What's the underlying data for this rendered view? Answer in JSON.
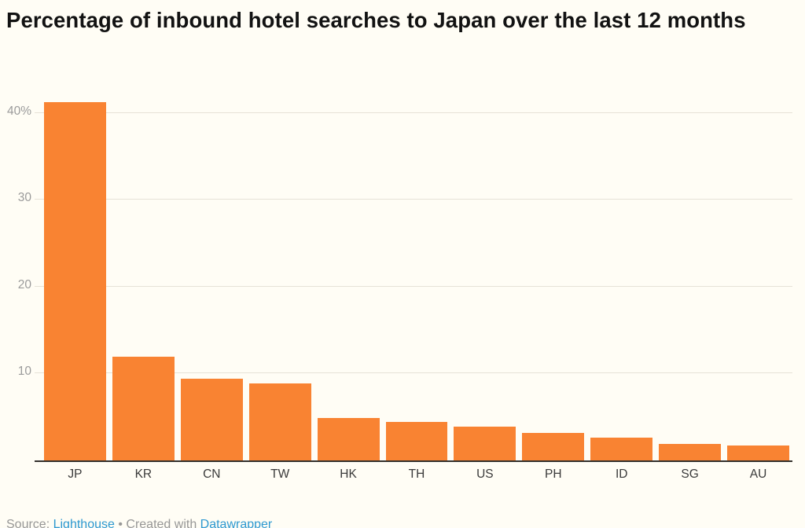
{
  "title": "Percentage of inbound hotel searches to Japan over the last 12 months",
  "chart_data": {
    "type": "bar",
    "categories": [
      "JP",
      "KR",
      "CN",
      "TW",
      "HK",
      "TH",
      "US",
      "PH",
      "ID",
      "SG",
      "AU"
    ],
    "values": [
      41.2,
      11.9,
      9.4,
      8.9,
      4.9,
      4.4,
      3.9,
      3.2,
      2.6,
      1.9,
      1.7
    ],
    "title": "Percentage of inbound hotel searches to Japan over the last 12 months",
    "xlabel": "",
    "ylabel": "",
    "ylim": [
      0,
      41.6
    ],
    "yticks": [
      {
        "value": 10,
        "label": "10"
      },
      {
        "value": 20,
        "label": "20"
      },
      {
        "value": 30,
        "label": "30"
      },
      {
        "value": 40,
        "label": "40%"
      }
    ],
    "grid": "horizontal",
    "legend": "none",
    "bar_color": "#f98332"
  },
  "footer": {
    "source_prefix": "Source: ",
    "source_link": "Lighthouse",
    "separator": " • ",
    "created_text": "Created with ",
    "tool_link": "Datawrapper"
  },
  "colors": {
    "background": "#fffdf5",
    "bar": "#f98332",
    "gridline": "#e6e2d7",
    "axis_line": "#33302c",
    "ytick_text": "#9b9b9b",
    "xtick_text": "#3a3a3a",
    "title_text": "#121212",
    "footer_text": "#979797",
    "link": "#2e99d1"
  }
}
